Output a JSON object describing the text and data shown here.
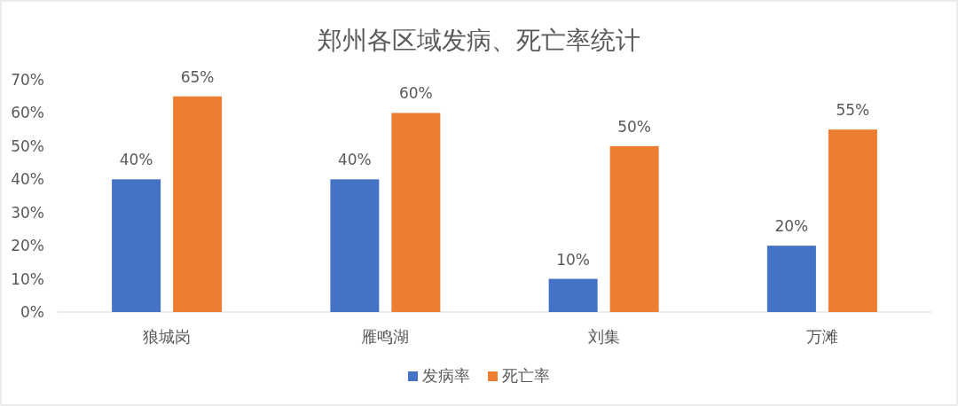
{
  "chart_data": {
    "type": "bar",
    "title": "郑州各区域发病、死亡率统计",
    "categories": [
      "狼城岗",
      "雁鸣湖",
      "刘集",
      "万滩"
    ],
    "series": [
      {
        "name": "发病率",
        "color": "#4472c4",
        "values": [
          40,
          40,
          10,
          20
        ],
        "value_labels": [
          "40%",
          "40%",
          "10%",
          "20%"
        ]
      },
      {
        "name": "死亡率",
        "color": "#ed7d31",
        "values": [
          65,
          60,
          50,
          55
        ],
        "value_labels": [
          "65%",
          "60%",
          "50%",
          "55%"
        ]
      }
    ],
    "ylim": [
      0,
      70
    ],
    "yticks": [
      {
        "value": 0,
        "label": "0%"
      },
      {
        "value": 10,
        "label": "10%"
      },
      {
        "value": 20,
        "label": "20%"
      },
      {
        "value": 30,
        "label": "30%"
      },
      {
        "value": 40,
        "label": "40%"
      },
      {
        "value": 50,
        "label": "50%"
      },
      {
        "value": 60,
        "label": "60%"
      },
      {
        "value": 70,
        "label": "70%"
      }
    ],
    "grid": false,
    "legend": "bottom"
  }
}
